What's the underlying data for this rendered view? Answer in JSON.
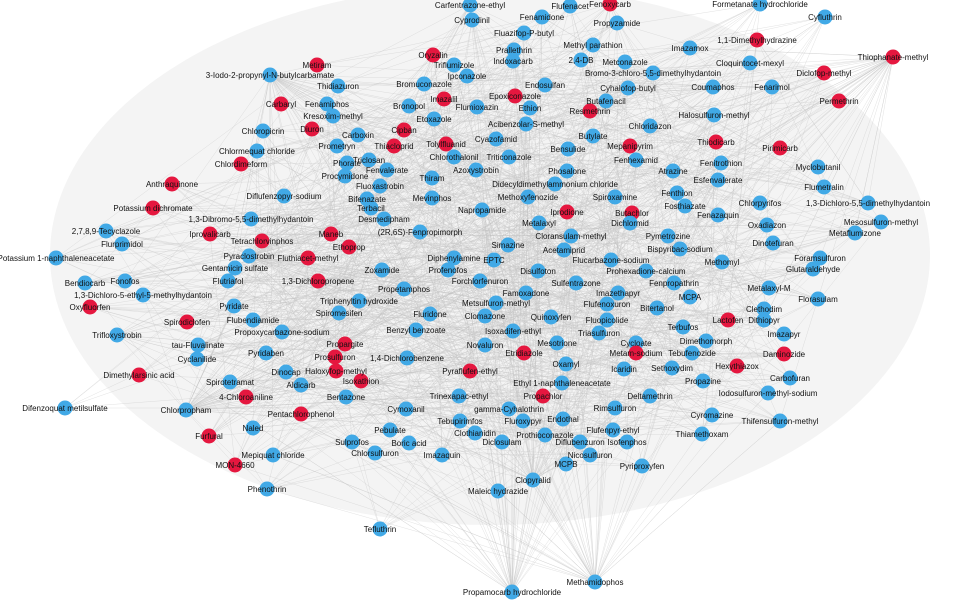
{
  "nodes": [
    {
      "label": "Carfentrazone-ethyl",
      "color": "#41a9e6"
    },
    {
      "label": "Flufenacet",
      "color": "#41a9e6"
    },
    {
      "label": "Fenoxycarb",
      "color": "#e5173f"
    },
    {
      "label": "Formetanate hydrochloride",
      "color": "#41a9e6"
    },
    {
      "label": "Cyfluthrin",
      "color": "#41a9e6"
    },
    {
      "label": "Cyprodinil",
      "color": "#41a9e6"
    },
    {
      "label": "Fenamidone",
      "color": "#41a9e6"
    },
    {
      "label": "Propyzamide",
      "color": "#41a9e6"
    },
    {
      "label": "Fluazifop-P-butyl",
      "color": "#41a9e6"
    },
    {
      "label": "Methyl parathion",
      "color": "#41a9e6"
    },
    {
      "label": "1,1-Dimethylhydrazine",
      "color": "#e5173f"
    },
    {
      "label": "Thiophanate-methyl",
      "color": "#e5173f"
    },
    {
      "label": "Oryzalin",
      "color": "#e5173f"
    },
    {
      "label": "Prallethrin",
      "color": "#41a9e6"
    },
    {
      "label": "Triflumizole",
      "color": "#41a9e6"
    },
    {
      "label": "Indoxacarb",
      "color": "#41a9e6"
    },
    {
      "label": "2,4-DB",
      "color": "#41a9e6"
    },
    {
      "label": "Metconazole",
      "color": "#41a9e6"
    },
    {
      "label": "Imazamox",
      "color": "#41a9e6"
    },
    {
      "label": "Cloquintocet-mexyl",
      "color": "#41a9e6"
    },
    {
      "label": "Metiram",
      "color": "#e5173f"
    },
    {
      "label": "3-Iodo-2-propynyl-N-butylcarbamate",
      "color": "#41a9e6"
    },
    {
      "label": "Ipconazole",
      "color": "#41a9e6"
    },
    {
      "label": "Bromo-3-chloro-5,5-dimethylhydantoin",
      "color": "#41a9e6"
    },
    {
      "label": "Diclofop-methyl",
      "color": "#e5173f"
    },
    {
      "label": "Thidiazuron",
      "color": "#41a9e6"
    },
    {
      "label": "Bromuconazole",
      "color": "#41a9e6"
    },
    {
      "label": "Epoxiconazole",
      "color": "#e5173f"
    },
    {
      "label": "Imazalil",
      "color": "#e5173f"
    },
    {
      "label": "Endosulfan",
      "color": "#41a9e6"
    },
    {
      "label": "Coumaphos",
      "color": "#41a9e6"
    },
    {
      "label": "Fenarimol",
      "color": "#41a9e6"
    },
    {
      "label": "Permethrin",
      "color": "#e5173f"
    },
    {
      "label": "Cyhalofop-butyl",
      "color": "#41a9e6"
    },
    {
      "label": "Carbaryl",
      "color": "#e5173f"
    },
    {
      "label": "Fenamiphos",
      "color": "#41a9e6"
    },
    {
      "label": "Bronopol",
      "color": "#41a9e6"
    },
    {
      "label": "Flumioxazin",
      "color": "#41a9e6"
    },
    {
      "label": "Ethion",
      "color": "#41a9e6"
    },
    {
      "label": "Butafenacil",
      "color": "#41a9e6"
    },
    {
      "label": "Resmethrin",
      "color": "#e5173f"
    },
    {
      "label": "Kresoxim-methyl",
      "color": "#41a9e6"
    },
    {
      "label": "Etoxazole",
      "color": "#41a9e6"
    },
    {
      "label": "Halosulfuron-methyl",
      "color": "#41a9e6"
    },
    {
      "label": "Chloropicrin",
      "color": "#41a9e6"
    },
    {
      "label": "Diuron",
      "color": "#e5173f"
    },
    {
      "label": "Carboxin",
      "color": "#41a9e6"
    },
    {
      "label": "Cipban",
      "color": "#e5173f"
    },
    {
      "label": "Acibenzolar-S-methyl",
      "color": "#41a9e6"
    },
    {
      "label": "Chloridazon",
      "color": "#41a9e6"
    },
    {
      "label": "Cyazofamid",
      "color": "#41a9e6"
    },
    {
      "label": "Butylate",
      "color": "#41a9e6"
    },
    {
      "label": "Chlormequat chloride",
      "color": "#41a9e6"
    },
    {
      "label": "Prometryn",
      "color": "#41a9e6"
    },
    {
      "label": "Thiacloprid",
      "color": "#e5173f"
    },
    {
      "label": "Tolylfluanid",
      "color": "#e5173f"
    },
    {
      "label": "Bensulide",
      "color": "#41a9e6"
    },
    {
      "label": "Mepanipyrim",
      "color": "#e5173f"
    },
    {
      "label": "Thiodicarb",
      "color": "#e5173f"
    },
    {
      "label": "Pirimicarb",
      "color": "#e5173f"
    },
    {
      "label": "Chlordimeform",
      "color": "#e5173f"
    },
    {
      "label": "Chlorothalonil",
      "color": "#41a9e6"
    },
    {
      "label": "Triticonazole",
      "color": "#41a9e6"
    },
    {
      "label": "Triclosan",
      "color": "#41a9e6"
    },
    {
      "label": "Phorate",
      "color": "#41a9e6"
    },
    {
      "label": "Fenhexamid",
      "color": "#41a9e6"
    },
    {
      "label": "Fenitrothion",
      "color": "#41a9e6"
    },
    {
      "label": "Myclobutanil",
      "color": "#41a9e6"
    },
    {
      "label": "Procymidone",
      "color": "#41a9e6"
    },
    {
      "label": "Fenvalerate",
      "color": "#41a9e6"
    },
    {
      "label": "Azoxystrobin",
      "color": "#41a9e6"
    },
    {
      "label": "Phosalone",
      "color": "#41a9e6"
    },
    {
      "label": "Atrazine",
      "color": "#41a9e6"
    },
    {
      "label": "Thiram",
      "color": "#41a9e6"
    },
    {
      "label": "Didecyldimethylammonium chloride",
      "color": "#41a9e6"
    },
    {
      "label": "Esfenvalerate",
      "color": "#41a9e6"
    },
    {
      "label": "Anthraquinone",
      "color": "#e5173f"
    },
    {
      "label": "Fluoxastrobin",
      "color": "#41a9e6"
    },
    {
      "label": "Flumetralin",
      "color": "#41a9e6"
    },
    {
      "label": "Diflufenzopyr-sodium",
      "color": "#41a9e6"
    },
    {
      "label": "Bifenazate",
      "color": "#41a9e6"
    },
    {
      "label": "Mevinphos",
      "color": "#41a9e6"
    },
    {
      "label": "Methoxyfenozide",
      "color": "#41a9e6"
    },
    {
      "label": "Spiroxamine",
      "color": "#41a9e6"
    },
    {
      "label": "Fenthion",
      "color": "#41a9e6"
    },
    {
      "label": "1,3-Dichloro-5,5-dimethylhydantoin",
      "color": "#41a9e6"
    },
    {
      "label": "Potassium dichromate",
      "color": "#e5173f"
    },
    {
      "label": "Terbacil",
      "color": "#41a9e6"
    },
    {
      "label": "Fosthiazate",
      "color": "#41a9e6"
    },
    {
      "label": "Chlorpyrifos",
      "color": "#41a9e6"
    },
    {
      "label": "1,3-Dibromo-5,5-dimethylhydantoin",
      "color": "#41a9e6"
    },
    {
      "label": "Desmedipham",
      "color": "#41a9e6"
    },
    {
      "label": "Napropamide",
      "color": "#41a9e6"
    },
    {
      "label": "Iprodione",
      "color": "#e5173f"
    },
    {
      "label": "Butachlor",
      "color": "#e5173f"
    },
    {
      "label": "Dichlormid",
      "color": "#41a9e6"
    },
    {
      "label": "Fenazaquin",
      "color": "#41a9e6"
    },
    {
      "label": "Mesosulfuron-methyl",
      "color": "#41a9e6"
    },
    {
      "label": "Metalaxyl",
      "color": "#41a9e6"
    },
    {
      "label": "Oxadiazon",
      "color": "#41a9e6"
    },
    {
      "label": "2,7,8,9-Tecyclazole",
      "color": "#41a9e6"
    },
    {
      "label": "Iprovalicarb",
      "color": "#e5173f"
    },
    {
      "label": "Maneb",
      "color": "#e5173f"
    },
    {
      "label": "(2R,6S)-Fenpropimorph",
      "color": "#41a9e6"
    },
    {
      "label": "Cloransulam-methyl",
      "color": "#41a9e6"
    },
    {
      "label": "Pymetrozine",
      "color": "#41a9e6"
    },
    {
      "label": "Dinotefuran",
      "color": "#41a9e6"
    },
    {
      "label": "Metaflumizone",
      "color": "#41a9e6"
    },
    {
      "label": "Flurprimidol",
      "color": "#41a9e6"
    },
    {
      "label": "Tetrachlorvinphos",
      "color": "#e5173f"
    },
    {
      "label": "Ethoprop",
      "color": "#e5173f"
    },
    {
      "label": "Simazine",
      "color": "#41a9e6"
    },
    {
      "label": "Acetamiprid",
      "color": "#41a9e6"
    },
    {
      "label": "Bispyribac-sodium",
      "color": "#41a9e6"
    },
    {
      "label": "Potassium 1-naphthaleneacetate",
      "color": "#41a9e6"
    },
    {
      "label": "Pyraclostrobin",
      "color": "#41a9e6"
    },
    {
      "label": "Fluthiacet-methyl",
      "color": "#e5173f"
    },
    {
      "label": "Diphenylamine",
      "color": "#41a9e6"
    },
    {
      "label": "EPTC",
      "color": "#41a9e6"
    },
    {
      "label": "Flucarbazone-sodium",
      "color": "#41a9e6"
    },
    {
      "label": "Methomyl",
      "color": "#41a9e6"
    },
    {
      "label": "Foramsulfuron",
      "color": "#41a9e6"
    },
    {
      "label": "Gentamicin sulfate",
      "color": "#41a9e6"
    },
    {
      "label": "Profenofos",
      "color": "#41a9e6"
    },
    {
      "label": "Disulfoton",
      "color": "#41a9e6"
    },
    {
      "label": "Prohexadione-calcium",
      "color": "#41a9e6"
    },
    {
      "label": "Glutaraldehyde",
      "color": "#41a9e6"
    },
    {
      "label": "1,3-Dichloropropene",
      "color": "#e5173f"
    },
    {
      "label": "Zoxamide",
      "color": "#41a9e6"
    },
    {
      "label": "Bendiocarb",
      "color": "#41a9e6"
    },
    {
      "label": "Fonofos",
      "color": "#41a9e6"
    },
    {
      "label": "Flutriafol",
      "color": "#41a9e6"
    },
    {
      "label": "Forchlorfenuron",
      "color": "#41a9e6"
    },
    {
      "label": "Sulfentrazone",
      "color": "#41a9e6"
    },
    {
      "label": "Fenpropathrin",
      "color": "#41a9e6"
    },
    {
      "label": "Metalaxyl-M",
      "color": "#41a9e6"
    },
    {
      "label": "1,3-Dichloro-5-ethyl-5-methylhydantoin",
      "color": "#41a9e6"
    },
    {
      "label": "Propetamphos",
      "color": "#41a9e6"
    },
    {
      "label": "Famoxadone",
      "color": "#41a9e6"
    },
    {
      "label": "Imazethapyr",
      "color": "#41a9e6"
    },
    {
      "label": "MCPA",
      "color": "#41a9e6"
    },
    {
      "label": "Clethodim",
      "color": "#41a9e6"
    },
    {
      "label": "Florasulam",
      "color": "#41a9e6"
    },
    {
      "label": "Oxyfluorfen",
      "color": "#e5173f"
    },
    {
      "label": "Pyridate",
      "color": "#41a9e6"
    },
    {
      "label": "Triphenyltin hydroxide",
      "color": "#41a9e6"
    },
    {
      "label": "Metsulfuron-methyl",
      "color": "#41a9e6"
    },
    {
      "label": "Flufenoxuron",
      "color": "#41a9e6"
    },
    {
      "label": "Bitertanol",
      "color": "#41a9e6"
    },
    {
      "label": "Dithiopyr",
      "color": "#41a9e6"
    },
    {
      "label": "Spiromesifen",
      "color": "#41a9e6"
    },
    {
      "label": "Fluridone",
      "color": "#41a9e6"
    },
    {
      "label": "Clomazone",
      "color": "#41a9e6"
    },
    {
      "label": "Quinoxyfen",
      "color": "#41a9e6"
    },
    {
      "label": "Fluopicolide",
      "color": "#41a9e6"
    },
    {
      "label": "Terbufos",
      "color": "#41a9e6"
    },
    {
      "label": "Lactofen",
      "color": "#e5173f"
    },
    {
      "label": "Imazapyr",
      "color": "#41a9e6"
    },
    {
      "label": "Spirodiclofen",
      "color": "#e5173f"
    },
    {
      "label": "Flubendiamide",
      "color": "#41a9e6"
    },
    {
      "label": "Propoxycarbazone-sodium",
      "color": "#41a9e6"
    },
    {
      "label": "Benzyl benzoate",
      "color": "#41a9e6"
    },
    {
      "label": "Isoxadifen-ethyl",
      "color": "#41a9e6"
    },
    {
      "label": "Triasulfuron",
      "color": "#41a9e6"
    },
    {
      "label": "Trifloxystrobin",
      "color": "#41a9e6"
    },
    {
      "label": "Propargite",
      "color": "#e5173f"
    },
    {
      "label": "Novaluron",
      "color": "#41a9e6"
    },
    {
      "label": "Mesotrione",
      "color": "#41a9e6"
    },
    {
      "label": "Cycloate",
      "color": "#41a9e6"
    },
    {
      "label": "Dimethomorph",
      "color": "#41a9e6"
    },
    {
      "label": "tau-Fluvalinate",
      "color": "#41a9e6"
    },
    {
      "label": "Etridiazole",
      "color": "#e5173f"
    },
    {
      "label": "Metam-sodium",
      "color": "#e5173f"
    },
    {
      "label": "Tebufenozide",
      "color": "#41a9e6"
    },
    {
      "label": "Daminozide",
      "color": "#e5173f"
    },
    {
      "label": "Cyclanilide",
      "color": "#41a9e6"
    },
    {
      "label": "Pyridaben",
      "color": "#41a9e6"
    },
    {
      "label": "Prosulfuron",
      "color": "#e5173f"
    },
    {
      "label": "1,4-Dichlorobenzene",
      "color": "#41a9e6"
    },
    {
      "label": "Oxamyl",
      "color": "#41a9e6"
    },
    {
      "label": "Icaridin",
      "color": "#41a9e6"
    },
    {
      "label": "Sethoxydim",
      "color": "#41a9e6"
    },
    {
      "label": "Hexythiazox",
      "color": "#e5173f"
    },
    {
      "label": "Dimethylarsinic acid",
      "color": "#e5173f"
    },
    {
      "label": "Haloxyfop-methyl",
      "color": "#e5173f"
    },
    {
      "label": "Pyraflufen-ethyl",
      "color": "#e5173f"
    },
    {
      "label": "Isoxathion",
      "color": "#e5173f"
    },
    {
      "label": "Dinocap",
      "color": "#41a9e6"
    },
    {
      "label": "Carbofuran",
      "color": "#41a9e6"
    },
    {
      "label": "Ethyl 1-naphthaleneacetate",
      "color": "#41a9e6"
    },
    {
      "label": "Spirotetramat",
      "color": "#41a9e6"
    },
    {
      "label": "Aldicarb",
      "color": "#41a9e6"
    },
    {
      "label": "Propazine",
      "color": "#41a9e6"
    },
    {
      "label": "4-Chloroaniline",
      "color": "#e5173f"
    },
    {
      "label": "Trinexapac-ethyl",
      "color": "#41a9e6"
    },
    {
      "label": "Propachlor",
      "color": "#e5173f"
    },
    {
      "label": "Deltamethrin",
      "color": "#41a9e6"
    },
    {
      "label": "Bentazone",
      "color": "#41a9e6"
    },
    {
      "label": "Iodosulfuron-methyl-sodium",
      "color": "#41a9e6"
    },
    {
      "label": "Difenzoquat metilsulfate",
      "color": "#41a9e6"
    },
    {
      "label": "Chlorpropham",
      "color": "#41a9e6"
    },
    {
      "label": "Cymoxanil",
      "color": "#41a9e6"
    },
    {
      "label": "gamma-Cyhalothrin",
      "color": "#41a9e6"
    },
    {
      "label": "Rimsulfuron",
      "color": "#41a9e6"
    },
    {
      "label": "Cyromazine",
      "color": "#41a9e6"
    },
    {
      "label": "Pentachlorophenol",
      "color": "#e5173f"
    },
    {
      "label": "Tebupirimfos",
      "color": "#41a9e6"
    },
    {
      "label": "Fluroxypyr",
      "color": "#41a9e6"
    },
    {
      "label": "Endothal",
      "color": "#41a9e6"
    },
    {
      "label": "Thifensulfuron-methyl",
      "color": "#41a9e6"
    },
    {
      "label": "Naled",
      "color": "#41a9e6"
    },
    {
      "label": "Pebulate",
      "color": "#41a9e6"
    },
    {
      "label": "Clothianidin",
      "color": "#41a9e6"
    },
    {
      "label": "Prothioconazole",
      "color": "#41a9e6"
    },
    {
      "label": "Flufenpyr-ethyl",
      "color": "#41a9e6"
    },
    {
      "label": "Thiamethoxam",
      "color": "#41a9e6"
    },
    {
      "label": "Furfural",
      "color": "#e5173f"
    },
    {
      "label": "Sulprofos",
      "color": "#41a9e6"
    },
    {
      "label": "Boric acid",
      "color": "#41a9e6"
    },
    {
      "label": "Diclosulam",
      "color": "#41a9e6"
    },
    {
      "label": "Diflubenzuron",
      "color": "#41a9e6"
    },
    {
      "label": "Isofenphos",
      "color": "#41a9e6"
    },
    {
      "label": "Mepiquat chloride",
      "color": "#41a9e6"
    },
    {
      "label": "Chlorsulfuron",
      "color": "#41a9e6"
    },
    {
      "label": "Imazaquin",
      "color": "#41a9e6"
    },
    {
      "label": "Nicosulfuron",
      "color": "#41a9e6"
    },
    {
      "label": "MON-4660",
      "color": "#e5173f"
    },
    {
      "label": "MCPB",
      "color": "#41a9e6"
    },
    {
      "label": "Pyriproxyfen",
      "color": "#41a9e6"
    },
    {
      "label": "Phenothrin",
      "color": "#41a9e6"
    },
    {
      "label": "Clopyralid",
      "color": "#41a9e6"
    },
    {
      "label": "Maleic hydrazide",
      "color": "#41a9e6"
    },
    {
      "label": "Tefluthrin",
      "color": "#41a9e6"
    },
    {
      "label": "Methamidophos",
      "color": "#41a9e6"
    },
    {
      "label": "Propamocarb hydrochloride",
      "color": "#41a9e6"
    }
  ]
}
